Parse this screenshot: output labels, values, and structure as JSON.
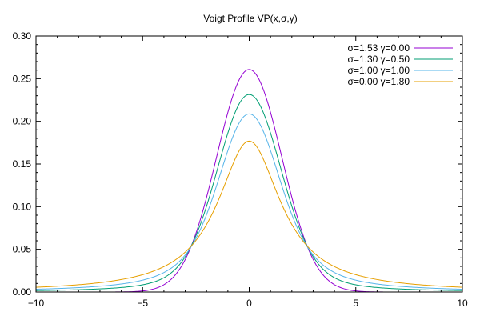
{
  "chart_data": {
    "type": "line",
    "title": "Voigt Profile VP(x,σ,γ)",
    "xlabel": "",
    "ylabel": "",
    "xlim": [
      -10,
      10
    ],
    "ylim": [
      0,
      0.3
    ],
    "x_ticks": [
      -10,
      -5,
      0,
      5,
      10
    ],
    "x_tick_labels": [
      "−10",
      "−5",
      "0",
      "5",
      "10"
    ],
    "y_ticks": [
      0,
      0.05,
      0.1,
      0.15,
      0.2,
      0.25,
      0.3
    ],
    "y_tick_labels": [
      "0.00",
      "0.05",
      "0.10",
      "0.15",
      "0.20",
      "0.25",
      "0.30"
    ],
    "grid": false,
    "legend_position": "top-right",
    "series": [
      {
        "name": "σ=1.53 γ=0.00",
        "sigma": 1.53,
        "gamma": 0.0,
        "color": "#9400d3"
      },
      {
        "name": "σ=1.30 γ=0.50",
        "sigma": 1.3,
        "gamma": 0.5,
        "color": "#009e73"
      },
      {
        "name": "σ=1.00 γ=1.00",
        "sigma": 1.0,
        "gamma": 1.0,
        "color": "#56b4e9"
      },
      {
        "name": "σ=0.00 γ=1.80",
        "sigma": 0.0,
        "gamma": 1.8,
        "color": "#e69f00"
      }
    ]
  }
}
